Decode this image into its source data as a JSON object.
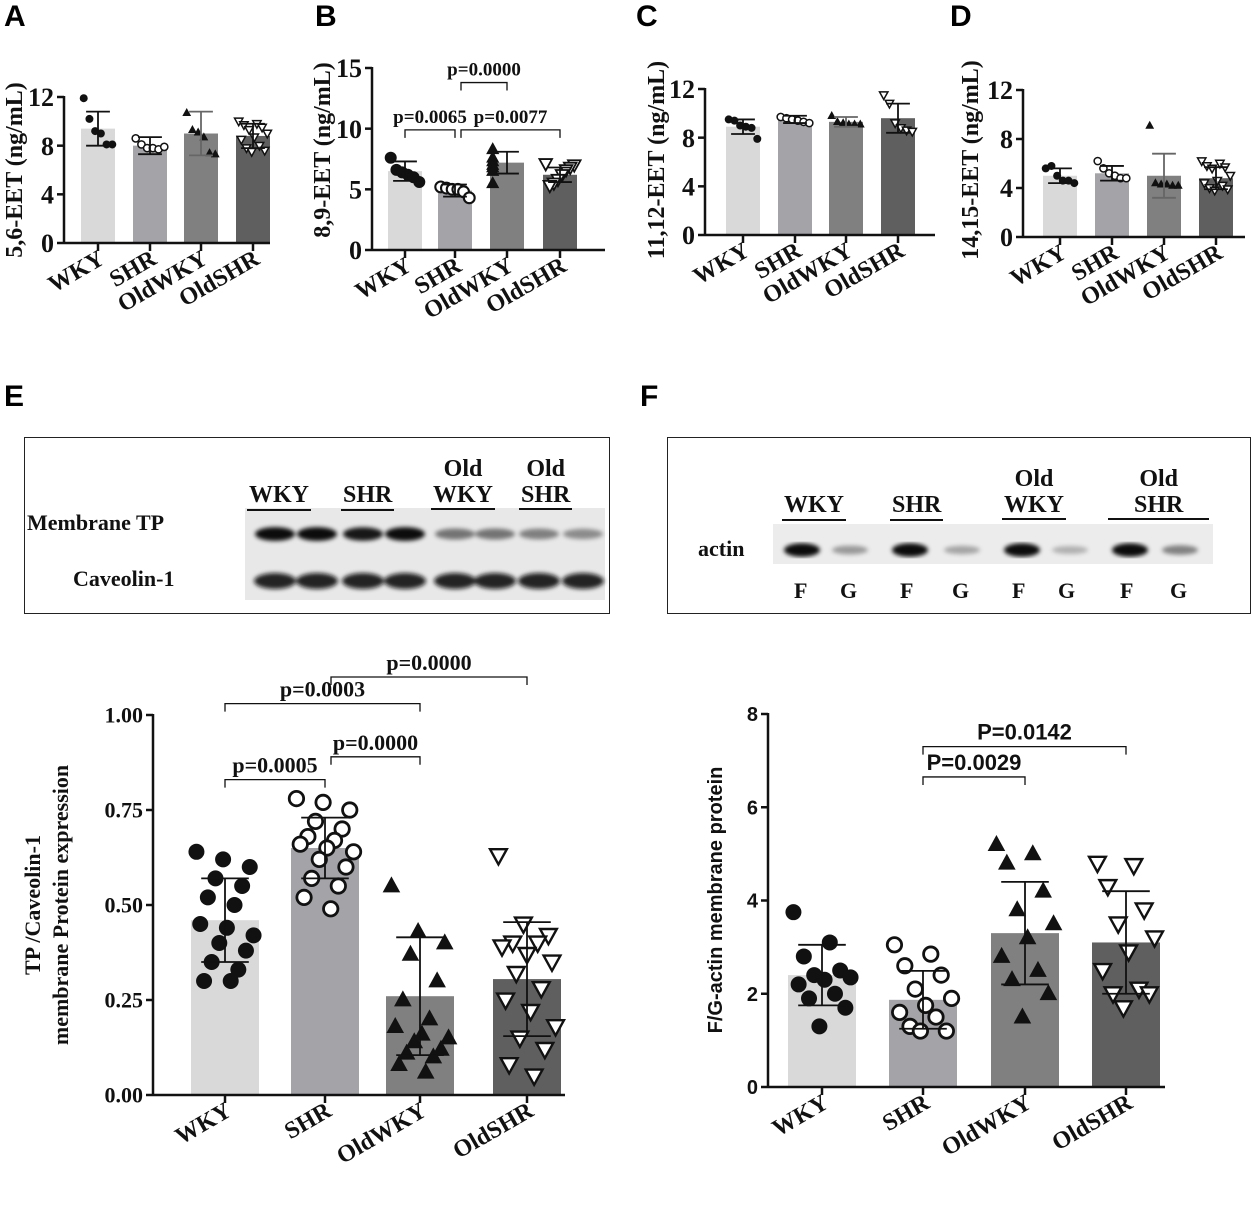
{
  "panels": {
    "A": "A",
    "B": "B",
    "C": "C",
    "D": "D",
    "E": "E",
    "F": "F"
  },
  "blot_E": {
    "groups": [
      "WKY",
      "SHR",
      "Old\nWKY",
      "Old\nSHR"
    ],
    "rows": [
      "Membrane TP",
      "Caveolin-1"
    ]
  },
  "blot_F": {
    "groups": [
      "WKY",
      "SHR",
      "Old\nWKY",
      "Old\nSHR"
    ],
    "row": "actin",
    "lanes": [
      "F",
      "G",
      "F",
      "G",
      "F",
      "G",
      "F",
      "G"
    ]
  },
  "colors": {
    "bars": [
      "#d9d9d9",
      "#a3a3a8",
      "#808080",
      "#5f5f5f"
    ],
    "ink": "#111111"
  },
  "chart_data": [
    {
      "id": "A",
      "type": "bar",
      "ylabel": "5,6-EET (ng/mL)",
      "categories": [
        "WKY",
        "SHR",
        "OldWKY",
        "OldSHR"
      ],
      "ylim": [
        0,
        12
      ],
      "yticks": [
        "0",
        "4",
        "8",
        "12"
      ],
      "ytick_values": [
        0,
        4,
        8,
        12
      ],
      "means": [
        9.4,
        8.0,
        9.0,
        8.8
      ],
      "sd": [
        1.4,
        0.7,
        1.8,
        1.0
      ],
      "points": [
        [
          11.9,
          10.2,
          9.2,
          9.0,
          8.1,
          8.1
        ],
        [
          8.6,
          8.1,
          7.8,
          7.8,
          7.7,
          7.9
        ],
        [
          10.7,
          9.3,
          9.1,
          8.7,
          7.4,
          7.3
        ],
        [
          10.0,
          9.8,
          9.7,
          9.5,
          9.3,
          9.0,
          8.7,
          8.5,
          8.0,
          7.8,
          7.6,
          7.5
        ]
      ],
      "comparisons": []
    },
    {
      "id": "B",
      "type": "bar",
      "ylabel": "8,9-EET (ng/mL)",
      "categories": [
        "WKY",
        "SHR",
        "OldWKY",
        "OldSHR"
      ],
      "ylim": [
        0,
        15
      ],
      "yticks": [
        "0",
        "5",
        "10",
        "15"
      ],
      "ytick_values": [
        0,
        5,
        10,
        15
      ],
      "means": [
        6.5,
        4.9,
        7.2,
        6.2
      ],
      "sd": [
        0.8,
        0.5,
        0.9,
        0.6
      ],
      "points": [
        [
          7.6,
          6.6,
          6.4,
          6.2,
          6.0,
          5.6
        ],
        [
          5.2,
          5.1,
          5.0,
          5.0,
          4.8,
          4.3
        ],
        [
          8.3,
          7.6,
          7.3,
          7.0,
          6.8,
          6.5,
          5.5
        ],
        [
          7.1,
          7.0,
          6.8,
          6.6,
          6.2,
          5.8,
          5.5,
          5.3
        ]
      ],
      "comparisons": [
        {
          "from": 0,
          "to": 1,
          "y": 9.9,
          "label": "p=0.0065"
        },
        {
          "from": 1,
          "to": 2,
          "y": 13.8,
          "label": "p=0.0000"
        },
        {
          "from": 1,
          "to": 3,
          "y": 9.9,
          "label": "p=0.0077"
        }
      ]
    },
    {
      "id": "C",
      "type": "bar",
      "ylabel": "11,12-EET (ng/mL)",
      "categories": [
        "WKY",
        "SHR",
        "OldWKY",
        "OldSHR"
      ],
      "ylim": [
        0,
        12
      ],
      "yticks": [
        "0",
        "4",
        "8",
        "12"
      ],
      "ytick_values": [
        0,
        4,
        8,
        12
      ],
      "means": [
        8.9,
        9.5,
        9.3,
        9.6
      ],
      "sd": [
        0.6,
        0.3,
        0.4,
        1.2
      ],
      "points": [
        [
          9.5,
          9.4,
          9.0,
          8.9,
          8.8,
          7.9
        ],
        [
          9.7,
          9.6,
          9.5,
          9.4,
          9.3,
          9.2
        ],
        [
          9.8,
          9.3,
          9.2,
          9.1,
          9.1,
          9.1
        ],
        [
          11.5,
          10.8,
          9.2,
          8.8,
          8.6,
          8.5
        ]
      ],
      "comparisons": []
    },
    {
      "id": "D",
      "type": "bar",
      "ylabel": "14,15-EET (ng/mL)",
      "categories": [
        "WKY",
        "SHR",
        "OldWKY",
        "OldSHR"
      ],
      "ylim": [
        0,
        12
      ],
      "yticks": [
        "0",
        "4",
        "8",
        "12"
      ],
      "ytick_values": [
        0,
        4,
        8,
        12
      ],
      "means": [
        5.0,
        5.2,
        5.0,
        4.8
      ],
      "sd": [
        0.6,
        0.6,
        1.8,
        0.9
      ],
      "points": [
        [
          5.6,
          5.8,
          5.0,
          4.6,
          4.6,
          4.4
        ],
        [
          6.2,
          5.6,
          5.2,
          5.0,
          4.8,
          4.8
        ],
        [
          9.1,
          4.4,
          4.3,
          4.3,
          4.2,
          4.2
        ],
        [
          6.2,
          6.0,
          5.8,
          5.7,
          5.6,
          5.0,
          4.6,
          4.4,
          4.2,
          4.0,
          3.9,
          3.8
        ]
      ],
      "comparisons": []
    },
    {
      "id": "E",
      "type": "bar",
      "ylabel": "TP /Caveolin-1",
      "ylabel2": "membrane Protein expression",
      "categories": [
        "WKY",
        "SHR",
        "OldWKY",
        "OldSHR"
      ],
      "ylim": [
        0,
        1
      ],
      "yticks": [
        "0.00",
        "0.25",
        "0.50",
        "0.75",
        "1.00"
      ],
      "ytick_values": [
        0,
        0.25,
        0.5,
        0.75,
        1
      ],
      "means": [
        0.46,
        0.65,
        0.26,
        0.305
      ],
      "sd": [
        0.11,
        0.08,
        0.155,
        0.15
      ],
      "points": [
        [
          0.64,
          0.62,
          0.6,
          0.57,
          0.55,
          0.52,
          0.5,
          0.45,
          0.44,
          0.42,
          0.4,
          0.38,
          0.35,
          0.33,
          0.3,
          0.3
        ],
        [
          0.78,
          0.77,
          0.75,
          0.72,
          0.7,
          0.68,
          0.67,
          0.66,
          0.65,
          0.64,
          0.62,
          0.6,
          0.57,
          0.55,
          0.52,
          0.49
        ],
        [
          0.55,
          0.43,
          0.4,
          0.37,
          0.3,
          0.25,
          0.2,
          0.18,
          0.16,
          0.15,
          0.14,
          0.12,
          0.11,
          0.1,
          0.08,
          0.06
        ],
        [
          0.63,
          0.45,
          0.42,
          0.4,
          0.4,
          0.39,
          0.37,
          0.35,
          0.32,
          0.28,
          0.25,
          0.22,
          0.18,
          0.15,
          0.12,
          0.08,
          0.05
        ]
      ],
      "comparisons": [
        {
          "from": 0,
          "to": 1,
          "y": 0.83,
          "label": "p=0.0005"
        },
        {
          "from": 0,
          "to": 2,
          "y": 1.03,
          "label": "p=0.0003"
        },
        {
          "from": 1,
          "to": 2,
          "y": 0.89,
          "label": "p=0.0000"
        },
        {
          "from": 1,
          "to": 3,
          "y": 1.1,
          "label": "p=0.0000"
        }
      ]
    },
    {
      "id": "F",
      "type": "bar",
      "ylabel": "F/G-actin membrane protein",
      "categories": [
        "WKY",
        "SHR",
        "OldWKY",
        "OldSHR"
      ],
      "ylim": [
        0,
        8
      ],
      "yticks": [
        "0",
        "2",
        "4",
        "6",
        "8"
      ],
      "ytick_values": [
        0,
        2,
        4,
        6,
        8
      ],
      "means": [
        2.4,
        1.87,
        3.3,
        3.1
      ],
      "sd": [
        0.65,
        0.62,
        1.1,
        1.1
      ],
      "points": [
        [
          3.75,
          3.1,
          2.8,
          2.5,
          2.4,
          2.35,
          2.3,
          2.2,
          2.0,
          1.9,
          1.7,
          1.3
        ],
        [
          3.05,
          2.85,
          2.6,
          2.4,
          2.1,
          1.9,
          1.75,
          1.6,
          1.5,
          1.3,
          1.2,
          1.2
        ],
        [
          5.2,
          5.0,
          4.8,
          4.2,
          3.8,
          3.5,
          3.2,
          2.8,
          2.5,
          2.3,
          2.0,
          1.5
        ],
        [
          4.8,
          4.75,
          4.3,
          3.8,
          3.5,
          3.2,
          2.9,
          2.5,
          2.1,
          2.0,
          2.0,
          1.7
        ]
      ],
      "comparisons": [
        {
          "from": 1,
          "to": 2,
          "y": 6.65,
          "label": "P=0.0029"
        },
        {
          "from": 1,
          "to": 3,
          "y": 7.3,
          "label": "P=0.0142"
        }
      ]
    }
  ]
}
